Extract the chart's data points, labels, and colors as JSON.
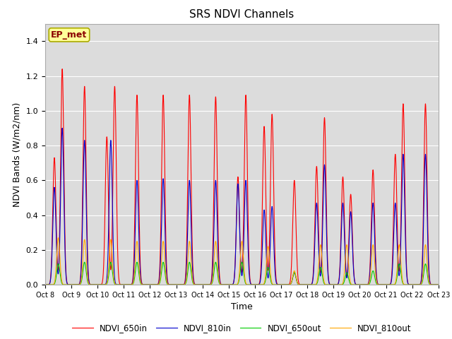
{
  "title": "SRS NDVI Channels",
  "xlabel": "Time",
  "ylabel": "NDVI Bands (W/m2/nm)",
  "ylim": [
    0,
    1.5
  ],
  "xlim": [
    0,
    15
  ],
  "xtick_labels": [
    "Oct 8",
    "Oct 9",
    "Oct 10",
    "Oct 11",
    "Oct 12",
    "Oct 13",
    "Oct 14",
    "Oct 15",
    "Oct 16",
    "Oct 17",
    "Oct 18",
    "Oct 19",
    "Oct 20",
    "Oct 21",
    "Oct 22",
    "Oct 23"
  ],
  "annotation_text": "EP_met",
  "annotation_color": "#8B0000",
  "annotation_bg": "#FFFF99",
  "bg_color": "#DCDCDC",
  "line_colors": {
    "NDVI_650in": "#FF0000",
    "NDVI_810in": "#0000CC",
    "NDVI_650out": "#00CC00",
    "NDVI_810out": "#FFA500"
  },
  "yticks": [
    0.0,
    0.2,
    0.4,
    0.6,
    0.8,
    1.0,
    1.2,
    1.4
  ],
  "day_peaks": {
    "NDVI_650in": [
      1.24,
      1.14,
      1.14,
      1.09,
      1.09,
      1.09,
      1.08,
      1.09,
      0.98,
      0.6,
      0.96,
      0.52,
      0.66,
      1.04,
      1.04
    ],
    "NDVI_810in": [
      0.9,
      0.83,
      0.83,
      0.6,
      0.61,
      0.6,
      0.6,
      0.6,
      0.45,
      0.07,
      0.69,
      0.42,
      0.47,
      0.75,
      0.75
    ],
    "NDVI_650out": [
      0.12,
      0.13,
      0.13,
      0.13,
      0.13,
      0.13,
      0.13,
      0.13,
      0.1,
      0.07,
      0.1,
      0.07,
      0.08,
      0.12,
      0.12
    ],
    "NDVI_810out": [
      0.27,
      0.26,
      0.26,
      0.25,
      0.25,
      0.25,
      0.25,
      0.25,
      0.22,
      0.08,
      0.23,
      0.23,
      0.23,
      0.23,
      0.23
    ]
  },
  "day_peak2": {
    "NDVI_650in": [
      0.73,
      0.0,
      0.85,
      0.0,
      0.0,
      0.0,
      0.0,
      0.62,
      0.91,
      0.0,
      0.68,
      0.62,
      0.0,
      0.75,
      0.0
    ],
    "NDVI_810in": [
      0.56,
      0.0,
      0.0,
      0.0,
      0.0,
      0.0,
      0.0,
      0.58,
      0.43,
      0.0,
      0.47,
      0.47,
      0.0,
      0.47,
      0.0
    ],
    "NDVI_650out": [
      0.0,
      0.0,
      0.0,
      0.0,
      0.0,
      0.0,
      0.0,
      0.0,
      0.0,
      0.0,
      0.0,
      0.0,
      0.0,
      0.0,
      0.0
    ],
    "NDVI_810out": [
      0.0,
      0.0,
      0.0,
      0.0,
      0.0,
      0.0,
      0.0,
      0.0,
      0.0,
      0.0,
      0.0,
      0.0,
      0.0,
      0.0,
      0.0
    ]
  }
}
